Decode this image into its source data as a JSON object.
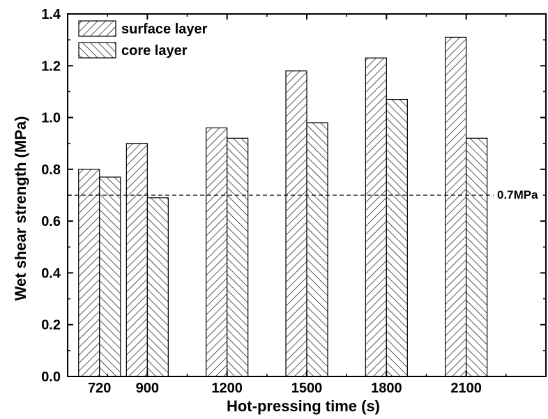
{
  "chart_data": {
    "type": "bar",
    "categories": [
      "720",
      "900",
      "1200",
      "1500",
      "1800",
      "2100"
    ],
    "series": [
      {
        "name": "surface layer",
        "values": [
          0.8,
          0.9,
          0.96,
          1.18,
          1.23,
          1.31
        ],
        "pattern": "hatch-forward"
      },
      {
        "name": "core layer",
        "values": [
          0.77,
          0.69,
          0.92,
          0.98,
          1.07,
          0.92
        ],
        "pattern": "hatch-backward"
      }
    ],
    "xlabel": "Hot-pressing time (s)",
    "ylabel": "Wet shear strength (MPa)",
    "ylim": [
      0.0,
      1.4
    ],
    "yticks": [
      "0.0",
      "0.2",
      "0.4",
      "0.6",
      "0.8",
      "1.0",
      "1.2",
      "1.4"
    ],
    "yticks_values": [
      0.0,
      0.2,
      0.4,
      0.6,
      0.8,
      1.0,
      1.2,
      1.4
    ],
    "x_axis_min": 600,
    "x_axis_max": 2400,
    "reference_line": {
      "value": 0.7,
      "label": "0.7MPa",
      "style": "dashed"
    },
    "legend_position": "top-left",
    "grid": false
  }
}
